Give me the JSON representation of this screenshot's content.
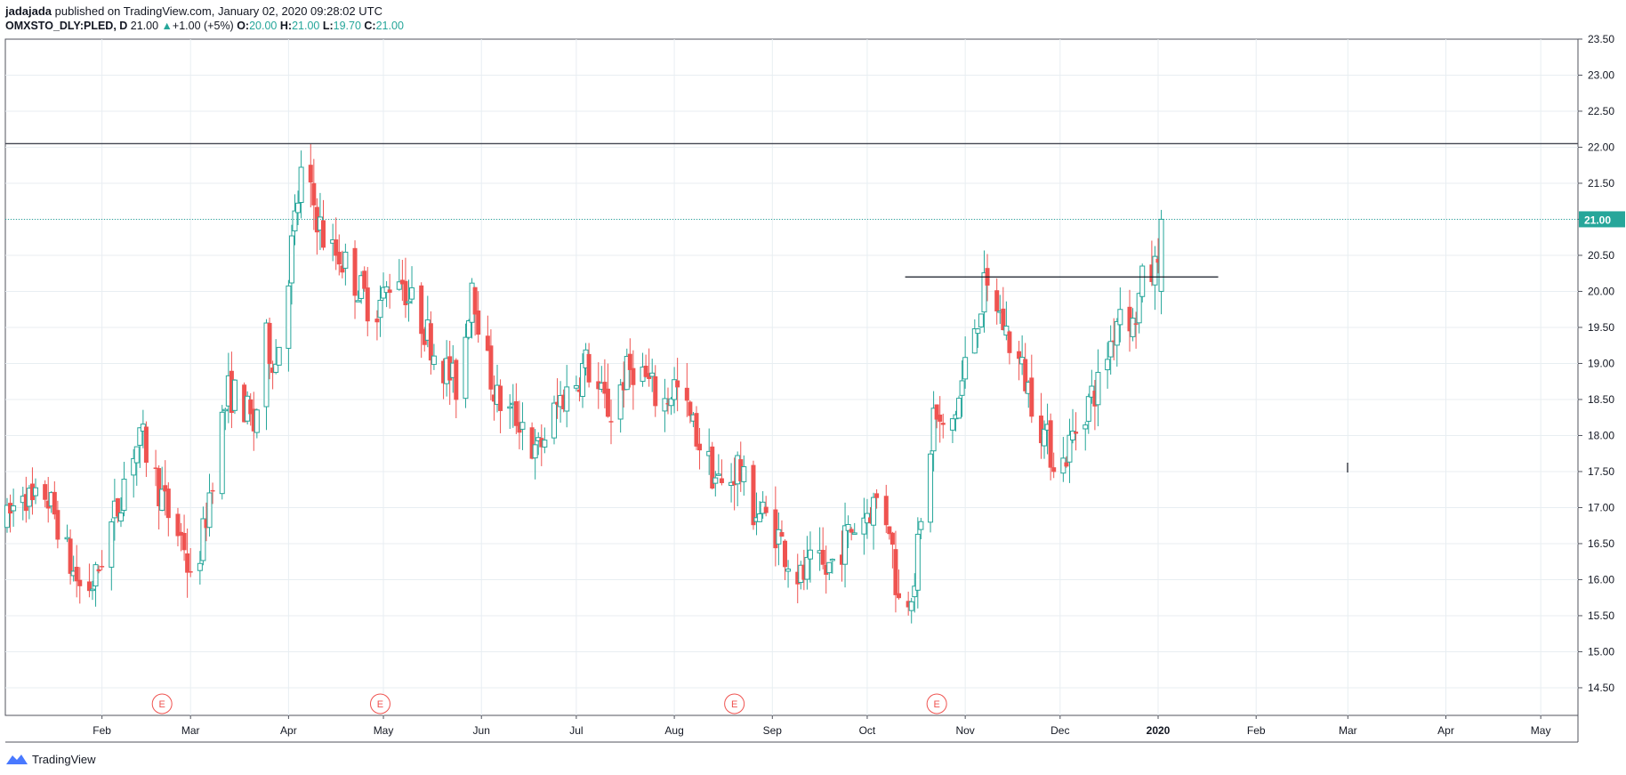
{
  "header": {
    "author": "jadajada",
    "published": " published on TradingView.com, January 02, 2020 09:28:02 UTC",
    "symbol": "OMXSTO_DLY:PLED, D",
    "last": "21.00",
    "change": "+1.00 (+5%)",
    "o_label": "O:",
    "o_value": "20.00",
    "h_label": "H:",
    "h_value": "21.00",
    "l_label": "L:",
    "l_value": "19.70",
    "c_label": "C:",
    "c_value": "21.00"
  },
  "footer": {
    "brand": "TradingView"
  },
  "colors": {
    "up": "#26a69a",
    "down": "#ef5350",
    "grid": "#e8eef2",
    "axis": "#50535e",
    "level": "#434651"
  },
  "chart_data": {
    "type": "candlestick",
    "x_tick_labels": [
      "Feb",
      "Mar",
      "Apr",
      "May",
      "Jun",
      "Jul",
      "Aug",
      "Sep",
      "Oct",
      "Nov",
      "Dec",
      "2020",
      "Feb",
      "Mar",
      "Apr",
      "May"
    ],
    "y_tick_labels": [
      "23.50",
      "23.00",
      "22.50",
      "22.00",
      "21.50",
      "21.00",
      "20.50",
      "20.00",
      "19.50",
      "19.00",
      "18.50",
      "18.00",
      "17.50",
      "17.00",
      "16.50",
      "16.00",
      "15.50",
      "15.00",
      "14.50"
    ],
    "ylim": [
      14.2,
      23.5
    ],
    "last_price": 21.0,
    "last_price_label": "21.00",
    "horizontal_levels": [
      22.05
    ],
    "trend_line": {
      "from": "2019-10-13",
      "to": "2020-01-20",
      "value": 20.2
    },
    "earnings_markers": [
      {
        "label": "E",
        "date": "2019-02-20"
      },
      {
        "label": "E",
        "date": "2019-04-30"
      },
      {
        "label": "E",
        "date": "2019-08-20"
      },
      {
        "label": "E",
        "date": "2019-10-23"
      }
    ],
    "price_path": [
      [
        "2019-01-02",
        16.8
      ],
      [
        "2019-01-07",
        17.3
      ],
      [
        "2019-01-10",
        17.0
      ],
      [
        "2019-01-14",
        17.2
      ],
      [
        "2019-01-18",
        16.8
      ],
      [
        "2019-01-22",
        16.2
      ],
      [
        "2019-01-26",
        15.8
      ],
      [
        "2019-01-30",
        16.0
      ],
      [
        "2019-02-02",
        16.5
      ],
      [
        "2019-02-06",
        17.0
      ],
      [
        "2019-02-10",
        17.8
      ],
      [
        "2019-02-14",
        17.9
      ],
      [
        "2019-02-18",
        17.4
      ],
      [
        "2019-02-22",
        16.9
      ],
      [
        "2019-02-27",
        16.5
      ],
      [
        "2019-03-01",
        15.9
      ],
      [
        "2019-03-05",
        16.6
      ],
      [
        "2019-03-09",
        17.8
      ],
      [
        "2019-03-13",
        18.6
      ],
      [
        "2019-03-17",
        18.5
      ],
      [
        "2019-03-21",
        18.1
      ],
      [
        "2019-03-25",
        19.3
      ],
      [
        "2019-03-28",
        19.0
      ],
      [
        "2019-04-01",
        20.3
      ],
      [
        "2019-04-05",
        21.6
      ],
      [
        "2019-04-09",
        21.2
      ],
      [
        "2019-04-13",
        20.6
      ],
      [
        "2019-04-17",
        20.5
      ],
      [
        "2019-04-20",
        20.3
      ],
      [
        "2019-04-24",
        20.0
      ],
      [
        "2019-04-28",
        19.7
      ],
      [
        "2019-05-02",
        20.0
      ],
      [
        "2019-05-05",
        20.4
      ],
      [
        "2019-05-09",
        19.9
      ],
      [
        "2019-05-13",
        19.6
      ],
      [
        "2019-05-17",
        19.2
      ],
      [
        "2019-05-21",
        18.9
      ],
      [
        "2019-05-25",
        18.6
      ],
      [
        "2019-05-29",
        20.2
      ],
      [
        "2019-06-02",
        19.1
      ],
      [
        "2019-06-06",
        18.5
      ],
      [
        "2019-06-10",
        18.3
      ],
      [
        "2019-06-14",
        18.2
      ],
      [
        "2019-06-18",
        17.7
      ],
      [
        "2019-06-22",
        18.1
      ],
      [
        "2019-06-26",
        18.5
      ],
      [
        "2019-06-30",
        18.7
      ],
      [
        "2019-07-04",
        19.0
      ],
      [
        "2019-07-08",
        18.6
      ],
      [
        "2019-07-12",
        18.3
      ],
      [
        "2019-07-16",
        18.8
      ],
      [
        "2019-07-20",
        19.0
      ],
      [
        "2019-07-24",
        18.7
      ],
      [
        "2019-07-28",
        18.4
      ],
      [
        "2019-08-01",
        18.7
      ],
      [
        "2019-08-05",
        18.3
      ],
      [
        "2019-08-09",
        17.9
      ],
      [
        "2019-08-13",
        17.5
      ],
      [
        "2019-08-17",
        17.2
      ],
      [
        "2019-08-21",
        17.6
      ],
      [
        "2019-08-25",
        17.0
      ],
      [
        "2019-08-29",
        16.9
      ],
      [
        "2019-09-02",
        16.7
      ],
      [
        "2019-09-06",
        16.3
      ],
      [
        "2019-09-10",
        16.0
      ],
      [
        "2019-09-14",
        16.2
      ],
      [
        "2019-09-18",
        16.1
      ],
      [
        "2019-09-22",
        16.4
      ],
      [
        "2019-09-26",
        16.7
      ],
      [
        "2019-09-30",
        16.9
      ],
      [
        "2019-10-04",
        17.1
      ],
      [
        "2019-10-08",
        16.8
      ],
      [
        "2019-10-10",
        16.0
      ],
      [
        "2019-10-12",
        15.4
      ],
      [
        "2019-10-14",
        15.8
      ],
      [
        "2019-10-16",
        16.1
      ],
      [
        "2019-10-19",
        17.0
      ],
      [
        "2019-10-22",
        18.3
      ],
      [
        "2019-10-26",
        17.9
      ],
      [
        "2019-10-30",
        18.5
      ],
      [
        "2019-11-03",
        19.4
      ],
      [
        "2019-11-07",
        20.0
      ],
      [
        "2019-11-11",
        19.8
      ],
      [
        "2019-11-15",
        19.3
      ],
      [
        "2019-11-19",
        18.9
      ],
      [
        "2019-11-23",
        18.4
      ],
      [
        "2019-11-27",
        17.9
      ],
      [
        "2019-12-01",
        17.5
      ],
      [
        "2019-12-05",
        18.0
      ],
      [
        "2019-12-09",
        18.4
      ],
      [
        "2019-12-13",
        18.7
      ],
      [
        "2019-12-17",
        19.3
      ],
      [
        "2019-12-21",
        20.0
      ],
      [
        "2019-12-24",
        19.5
      ],
      [
        "2019-12-27",
        20.1
      ],
      [
        "2019-12-31",
        20.3
      ],
      [
        "2020-01-02",
        21.0
      ]
    ]
  }
}
